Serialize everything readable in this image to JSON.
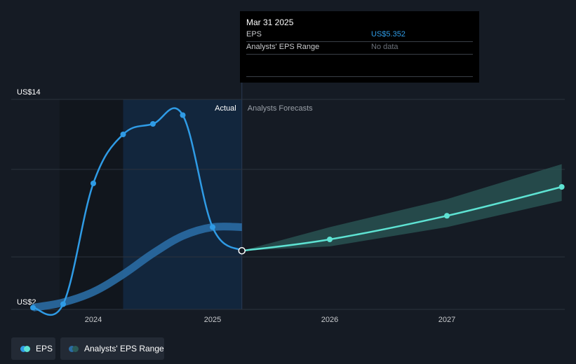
{
  "tooltip": {
    "date": "Mar 31 2025",
    "rows": [
      {
        "label": "EPS",
        "value": "US$5.352",
        "value_color": "#2f9be5"
      },
      {
        "label": "Analysts' EPS Range",
        "value": "No data",
        "value_color": "#6b717a"
      }
    ]
  },
  "sections": {
    "actual_label": "Actual",
    "forecast_label": "Analysts Forecasts"
  },
  "legend": {
    "eps_label": "EPS",
    "range_label": "Analysts' EPS Range"
  },
  "colors": {
    "eps_actual": "#2f9be5",
    "eps_forecast": "#5ee3d3",
    "range_actual": "#2a6ca3",
    "range_forecast": "#2b5a57",
    "actual_shade": "#12263d",
    "background": "#151b24"
  },
  "chart_data": {
    "type": "line",
    "title": "",
    "xlabel": "",
    "ylabel": "",
    "ylim": [
      2,
      14
    ],
    "xlim": [
      2023.5,
      2027.98
    ],
    "y_tick_labels": [
      {
        "value": 14,
        "label": "US$14"
      },
      {
        "value": 2,
        "label": "US$2"
      }
    ],
    "y_gridlines": [
      14,
      10,
      5,
      2
    ],
    "x_ticks": [
      {
        "value": 2024,
        "label": "2024"
      },
      {
        "value": 2025,
        "label": "2025"
      },
      {
        "value": 2026,
        "label": "2026"
      },
      {
        "value": 2027,
        "label": "2027"
      }
    ],
    "actual_region": [
      2024.25,
      2025.25
    ],
    "past_shade_start": 2023.72,
    "series": [
      {
        "name": "EPS",
        "segment": "actual",
        "points": [
          {
            "x": 2023.5,
            "y": 2.1
          },
          {
            "x": 2023.75,
            "y": 2.3
          },
          {
            "x": 2024.0,
            "y": 9.2
          },
          {
            "x": 2024.25,
            "y": 12.0
          },
          {
            "x": 2024.5,
            "y": 12.6
          },
          {
            "x": 2024.75,
            "y": 13.1
          },
          {
            "x": 2025.0,
            "y": 6.7
          },
          {
            "x": 2025.25,
            "y": 5.352
          }
        ]
      },
      {
        "name": "EPS",
        "segment": "forecast",
        "points": [
          {
            "x": 2025.25,
            "y": 5.352
          },
          {
            "x": 2026.0,
            "y": 6.0
          },
          {
            "x": 2027.0,
            "y": 7.35
          },
          {
            "x": 2027.98,
            "y": 9.0
          }
        ]
      },
      {
        "name": "Analysts' EPS Range",
        "segment": "actual-consensus",
        "points": [
          {
            "x": 2023.5,
            "y": 2.1
          },
          {
            "x": 2023.75,
            "y": 2.4
          },
          {
            "x": 2024.0,
            "y": 3.0
          },
          {
            "x": 2024.25,
            "y": 4.0
          },
          {
            "x": 2024.5,
            "y": 5.2
          },
          {
            "x": 2024.75,
            "y": 6.2
          },
          {
            "x": 2025.0,
            "y": 6.7
          },
          {
            "x": 2025.25,
            "y": 6.7
          }
        ]
      },
      {
        "name": "Analysts' EPS Range",
        "segment": "forecast-range",
        "low": [
          {
            "x": 2025.25,
            "y": 5.352
          },
          {
            "x": 2026.0,
            "y": 5.6
          },
          {
            "x": 2027.0,
            "y": 6.7
          },
          {
            "x": 2027.98,
            "y": 8.2
          }
        ],
        "high": [
          {
            "x": 2025.25,
            "y": 5.352
          },
          {
            "x": 2026.0,
            "y": 6.7
          },
          {
            "x": 2027.0,
            "y": 8.3
          },
          {
            "x": 2027.98,
            "y": 10.3
          }
        ]
      }
    ]
  }
}
